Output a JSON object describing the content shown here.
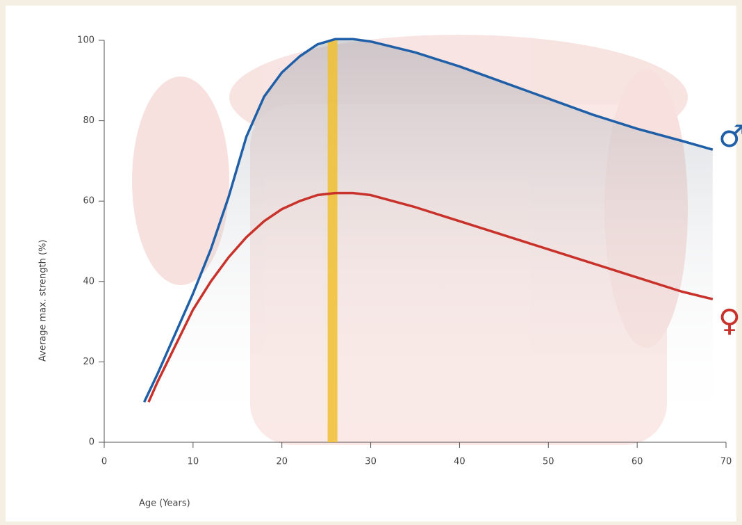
{
  "chart_data": {
    "type": "line",
    "x_label": "Age (Years)",
    "y_label": "Average max. strength (%)",
    "series": [
      {
        "name": "♂",
        "color": "#1f5fa8",
        "x": [
          4.5,
          6,
          8,
          10,
          12,
          14,
          16,
          18,
          20,
          22,
          24,
          26,
          28,
          30,
          35,
          40,
          45,
          50,
          55,
          60,
          65,
          68.5
        ],
        "values": [
          10,
          17,
          27,
          37,
          48,
          61,
          76,
          86,
          92,
          96,
          99,
          100.3,
          100.3,
          99.7,
          97,
          93.5,
          89.5,
          85.5,
          81.5,
          78,
          75,
          72.8
        ]
      },
      {
        "name": "♀",
        "color": "#c8322b",
        "x": [
          5,
          6,
          8,
          10,
          12,
          14,
          16,
          18,
          20,
          22,
          24,
          26,
          28,
          30,
          35,
          40,
          45,
          50,
          55,
          60,
          65,
          68.5
        ],
        "values": [
          10,
          15,
          24,
          33,
          40,
          46,
          51,
          55,
          58,
          60,
          61.5,
          62,
          62,
          61.5,
          58.5,
          55,
          51.5,
          48,
          44.5,
          41,
          37.5,
          35.6
        ]
      }
    ],
    "highlight_x": 25.7,
    "highlight_color": "#f0c030",
    "xlim": [
      0,
      70
    ],
    "xticks": [
      0,
      10,
      20,
      30,
      40,
      50,
      60,
      70
    ],
    "ylim": [
      0,
      100
    ],
    "yticks": [
      0,
      20,
      40,
      60,
      80,
      100
    ],
    "grid": false
  }
}
